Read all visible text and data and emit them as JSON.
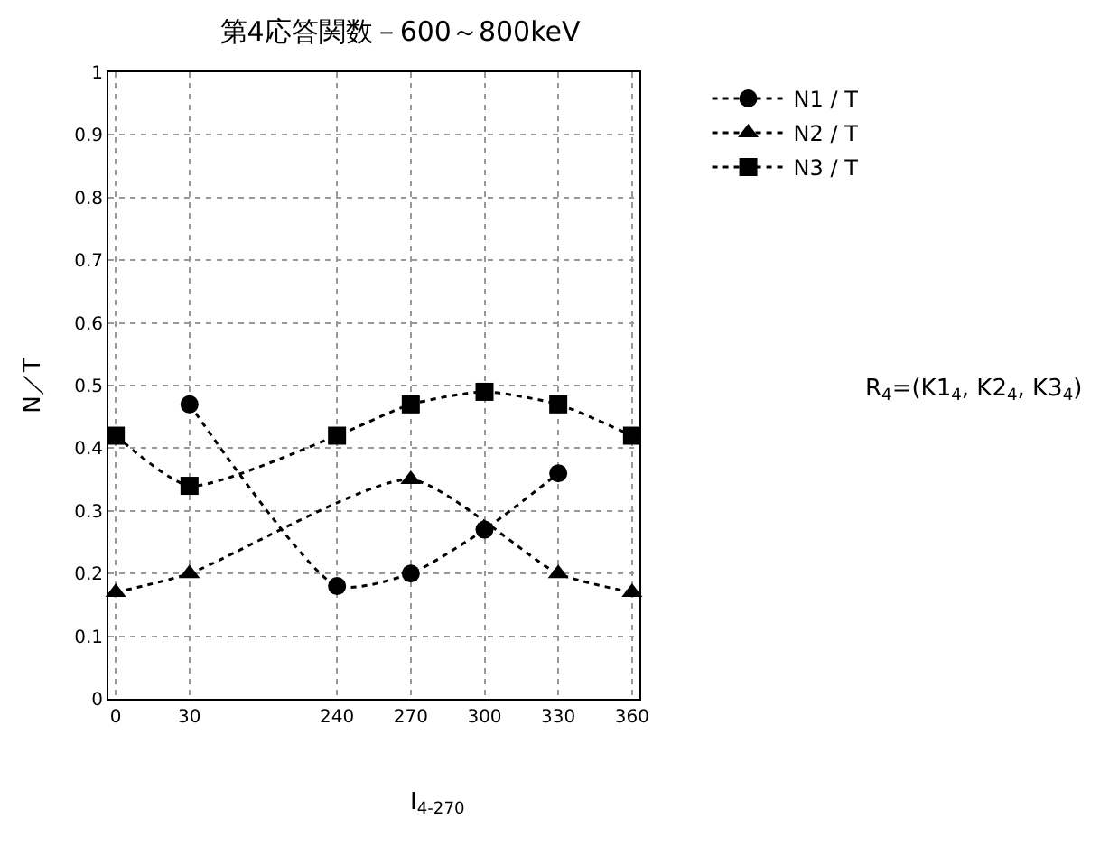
{
  "chart_data": {
    "type": "line",
    "title": "第4応答関数－600～800keV",
    "ylabel": "N／T",
    "categories": [
      "0",
      "30",
      null,
      "240",
      "270",
      "300",
      "330",
      "360"
    ],
    "series": [
      {
        "name": "N1 / T",
        "color": "#000000",
        "marker": "circle",
        "values": [
          null,
          0.47,
          null,
          0.18,
          0.2,
          0.27,
          0.36,
          null
        ]
      },
      {
        "name": "N2 / T",
        "color": "#000000",
        "marker": "triangle",
        "values": [
          0.17,
          0.2,
          null,
          null,
          0.35,
          null,
          0.2,
          0.17
        ]
      },
      {
        "name": "N3 / T",
        "color": "#000000",
        "marker": "square",
        "values": [
          0.42,
          0.34,
          null,
          0.42,
          0.47,
          0.49,
          0.47,
          0.42
        ]
      }
    ],
    "ylim": [
      0,
      1
    ],
    "yticks": [
      0,
      0.1,
      0.2,
      0.3,
      0.4,
      0.5,
      0.6,
      0.7,
      0.8,
      0.9,
      1
    ],
    "grid": true,
    "legend": "top right",
    "line_style": "dotted",
    "annotations": [
      "R$_{4}$=(K1$_{4}$, K2$_{4}$, K3$_{4}$)",
      "I$_{4-270}$"
    ]
  }
}
